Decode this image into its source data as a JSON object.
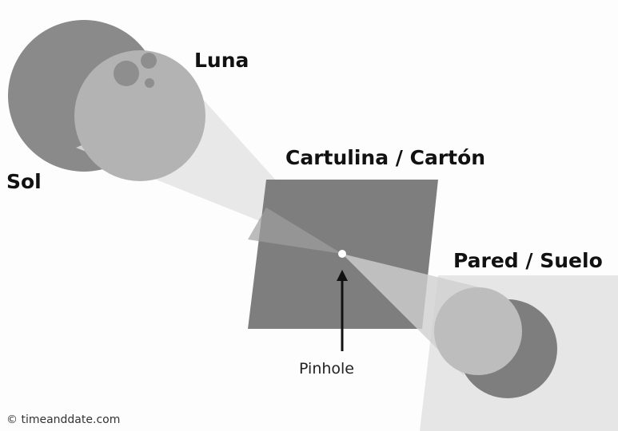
{
  "labels": {
    "moon": "Luna",
    "sun": "Sol",
    "card": "Cartulina / Cartón",
    "wall": "Pared / Suelo",
    "pinhole": "Pinhole"
  },
  "credit": "© timeanddate.com"
}
